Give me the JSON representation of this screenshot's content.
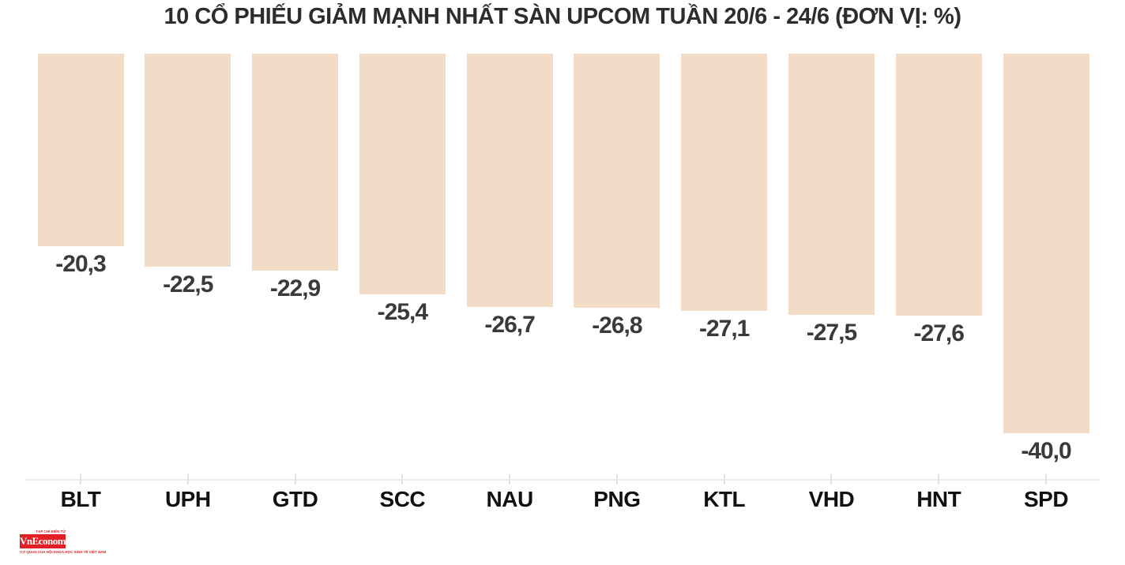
{
  "title": "10 CỔ PHIẾU GIẢM MẠNH NHẤT SÀN UPCOM TUẦN 20/6 - 24/6 (ĐƠN VỊ: %)",
  "chart_data": {
    "type": "bar",
    "orientation": "vertical",
    "title": "10 CỔ PHIẾU GIẢM MẠNH NHẤT SÀN UPCOM TUẦN 20/6 - 24/6 (ĐƠN VỊ: %)",
    "unit": "%",
    "categories": [
      "BLT",
      "UPH",
      "GTD",
      "SCC",
      "NAU",
      "PNG",
      "KTL",
      "VHD",
      "HNT",
      "SPD"
    ],
    "values": [
      -20.3,
      -22.5,
      -22.9,
      -25.4,
      -26.7,
      -26.8,
      -27.1,
      -27.5,
      -27.6,
      -40.0
    ],
    "value_labels": [
      "-20,3",
      "-22,5",
      "-22,9",
      "-25,4",
      "-26,7",
      "-26,8",
      "-27,1",
      "-27,5",
      "-27,6",
      "-40,0"
    ],
    "xlabel": "",
    "ylabel": "",
    "ylim": [
      -45,
      0
    ],
    "baseline": 0,
    "grid": false,
    "legend": false,
    "bar_color": "#f2dcc8",
    "value_label_color": "#3a3a3a",
    "category_label_color": "#111111",
    "axis_color": "#ececec"
  },
  "footer": {
    "logo_text": "VnEconomy",
    "logo_tagline_top": "TẠP CHÍ ĐIỆN TỬ",
    "logo_tagline_bottom": "CƠ QUAN CỦA HỘI KHOA HỌC KINH TẾ VIỆT NAM",
    "logo_bg_color": "#e31e24"
  }
}
